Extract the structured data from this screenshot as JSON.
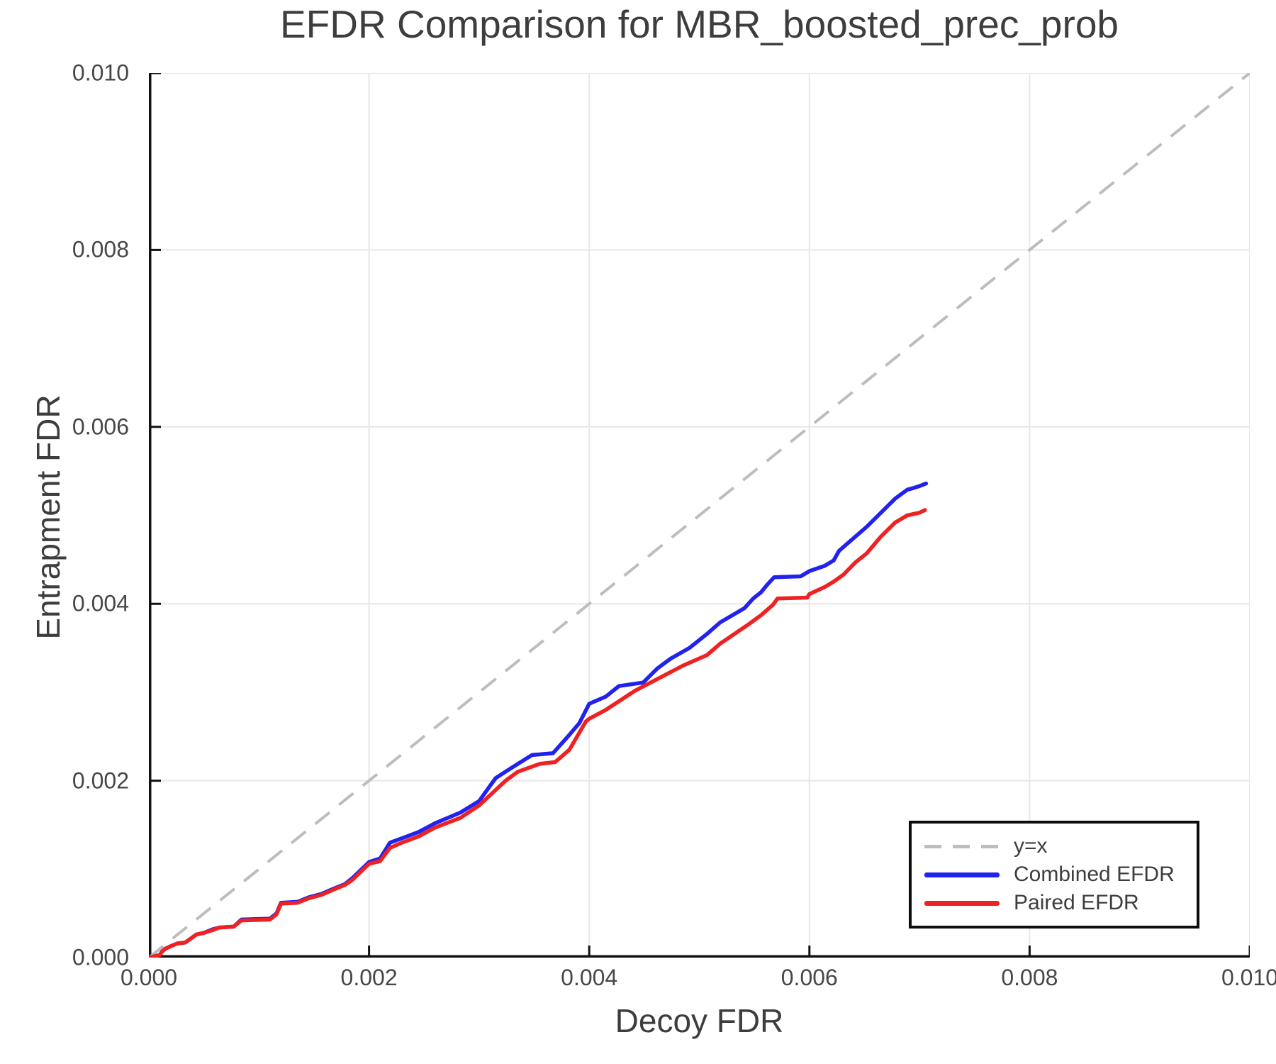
{
  "figure": {
    "title": "EFDR Comparison for MBR_boosted_prec_prob"
  },
  "colors": {
    "combined": "#2222ee",
    "paired": "#ee2222",
    "reference": "#bdbdbd",
    "grid": "#e7e7e7",
    "spine": "#111111",
    "text": "#3d3d3d",
    "tick_text": "#474747"
  },
  "legend": {
    "items": [
      {
        "label": "y=x",
        "style": "dashed",
        "color": "#bdbdbd"
      },
      {
        "label": "Combined EFDR",
        "style": "solid",
        "color": "#2222ee"
      },
      {
        "label": "Paired EFDR",
        "style": "solid",
        "color": "#ee2222"
      }
    ]
  },
  "chart_data": {
    "type": "line",
    "title": "EFDR Comparison for MBR_boosted_prec_prob",
    "xlabel": "Decoy FDR",
    "ylabel": "Entrapment FDR",
    "xlim": [
      0.0,
      0.01
    ],
    "ylim": [
      0.0,
      0.01
    ],
    "grid": true,
    "legend_position": "lower right",
    "x_ticks": {
      "values": [
        0.0,
        0.002,
        0.004,
        0.006,
        0.008,
        0.01
      ],
      "labels": [
        "0.000",
        "0.002",
        "0.004",
        "0.006",
        "0.008",
        "0.010"
      ]
    },
    "y_ticks": {
      "values": [
        0.0,
        0.002,
        0.004,
        0.006,
        0.008,
        0.01
      ],
      "labels": [
        "0.000",
        "0.002",
        "0.004",
        "0.006",
        "0.008",
        "0.010"
      ]
    },
    "reference_line": {
      "label": "y=x",
      "from": [
        0.0,
        0.0
      ],
      "to": [
        0.01,
        0.01
      ],
      "style": "dashed"
    },
    "series": [
      {
        "name": "Combined EFDR",
        "color": "#2222ee",
        "points": [
          [
            0.0,
            0.0
          ],
          [
            0.0001,
            3e-05
          ],
          [
            0.00012,
            7e-05
          ],
          [
            0.00015,
            0.0001
          ],
          [
            0.0002,
            0.00013
          ],
          [
            0.00026,
            0.00016
          ],
          [
            0.00033,
            0.00017
          ],
          [
            0.00043,
            0.00026
          ],
          [
            0.0005,
            0.00028
          ],
          [
            0.00058,
            0.00032
          ],
          [
            0.00064,
            0.00034
          ],
          [
            0.00077,
            0.00035
          ],
          [
            0.00084,
            0.00043
          ],
          [
            0.0011,
            0.00044
          ],
          [
            0.00116,
            0.0005
          ],
          [
            0.0012,
            0.00062
          ],
          [
            0.00135,
            0.00063
          ],
          [
            0.00145,
            0.00068
          ],
          [
            0.00157,
            0.00072
          ],
          [
            0.00168,
            0.00078
          ],
          [
            0.00178,
            0.00083
          ],
          [
            0.00185,
            0.0009
          ],
          [
            0.00195,
            0.00102
          ],
          [
            0.002,
            0.00108
          ],
          [
            0.0021,
            0.00112
          ],
          [
            0.00219,
            0.0013
          ],
          [
            0.0023,
            0.00135
          ],
          [
            0.00245,
            0.00142
          ],
          [
            0.0026,
            0.00152
          ],
          [
            0.00283,
            0.00164
          ],
          [
            0.003,
            0.00177
          ],
          [
            0.00315,
            0.00203
          ],
          [
            0.0033,
            0.00215
          ],
          [
            0.00348,
            0.00229
          ],
          [
            0.00367,
            0.00231
          ],
          [
            0.0038,
            0.00249
          ],
          [
            0.00391,
            0.00265
          ],
          [
            0.004,
            0.00287
          ],
          [
            0.00415,
            0.00295
          ],
          [
            0.00427,
            0.00307
          ],
          [
            0.00449,
            0.00311
          ],
          [
            0.00462,
            0.00327
          ],
          [
            0.00474,
            0.00338
          ],
          [
            0.00491,
            0.0035
          ],
          [
            0.00507,
            0.00366
          ],
          [
            0.00519,
            0.00379
          ],
          [
            0.0053,
            0.00387
          ],
          [
            0.00541,
            0.00395
          ],
          [
            0.00549,
            0.00406
          ],
          [
            0.00556,
            0.00413
          ],
          [
            0.00562,
            0.00422
          ],
          [
            0.00568,
            0.0043
          ],
          [
            0.00592,
            0.00431
          ],
          [
            0.006,
            0.00437
          ],
          [
            0.00614,
            0.00443
          ],
          [
            0.00622,
            0.00449
          ],
          [
            0.00627,
            0.0046
          ],
          [
            0.00639,
            0.00473
          ],
          [
            0.00652,
            0.00487
          ],
          [
            0.00665,
            0.00503
          ],
          [
            0.00678,
            0.00519
          ],
          [
            0.00689,
            0.00529
          ],
          [
            0.00695,
            0.00531
          ],
          [
            0.007,
            0.00533
          ],
          [
            0.00706,
            0.00536
          ]
        ]
      },
      {
        "name": "Paired EFDR",
        "color": "#ee2222",
        "points": [
          [
            0.0,
            0.0
          ],
          [
            0.0001,
            3e-05
          ],
          [
            0.00012,
            7e-05
          ],
          [
            0.00015,
            0.0001
          ],
          [
            0.0002,
            0.00013
          ],
          [
            0.00026,
            0.00016
          ],
          [
            0.00033,
            0.00017
          ],
          [
            0.00043,
            0.00026
          ],
          [
            0.0005,
            0.00028
          ],
          [
            0.00058,
            0.00031
          ],
          [
            0.00064,
            0.00034
          ],
          [
            0.00077,
            0.00035
          ],
          [
            0.00084,
            0.00042
          ],
          [
            0.0011,
            0.00043
          ],
          [
            0.00116,
            0.00049
          ],
          [
            0.0012,
            0.00061
          ],
          [
            0.00135,
            0.00062
          ],
          [
            0.00145,
            0.00067
          ],
          [
            0.00157,
            0.00071
          ],
          [
            0.00168,
            0.00077
          ],
          [
            0.00178,
            0.00082
          ],
          [
            0.00185,
            0.00088
          ],
          [
            0.00195,
            0.001
          ],
          [
            0.002,
            0.00106
          ],
          [
            0.0021,
            0.00109
          ],
          [
            0.00219,
            0.00124
          ],
          [
            0.0023,
            0.0013
          ],
          [
            0.00245,
            0.00137
          ],
          [
            0.0026,
            0.00147
          ],
          [
            0.00283,
            0.00158
          ],
          [
            0.003,
            0.00172
          ],
          [
            0.00324,
            0.002
          ],
          [
            0.00335,
            0.0021
          ],
          [
            0.00355,
            0.00219
          ],
          [
            0.00369,
            0.00221
          ],
          [
            0.00382,
            0.00235
          ],
          [
            0.00397,
            0.00267
          ],
          [
            0.004,
            0.0027
          ],
          [
            0.00415,
            0.0028
          ],
          [
            0.00442,
            0.00302
          ],
          [
            0.00462,
            0.00315
          ],
          [
            0.00485,
            0.0033
          ],
          [
            0.00507,
            0.00342
          ],
          [
            0.00519,
            0.00355
          ],
          [
            0.00532,
            0.00366
          ],
          [
            0.00545,
            0.00377
          ],
          [
            0.00556,
            0.00387
          ],
          [
            0.00567,
            0.00399
          ],
          [
            0.00571,
            0.00406
          ],
          [
            0.00598,
            0.00407
          ],
          [
            0.006,
            0.00411
          ],
          [
            0.00614,
            0.00419
          ],
          [
            0.00622,
            0.00425
          ],
          [
            0.00631,
            0.00433
          ],
          [
            0.00642,
            0.00447
          ],
          [
            0.00652,
            0.00457
          ],
          [
            0.00665,
            0.00476
          ],
          [
            0.00678,
            0.00492
          ],
          [
            0.00689,
            0.005
          ],
          [
            0.007,
            0.00503
          ],
          [
            0.00705,
            0.00506
          ]
        ]
      }
    ]
  }
}
